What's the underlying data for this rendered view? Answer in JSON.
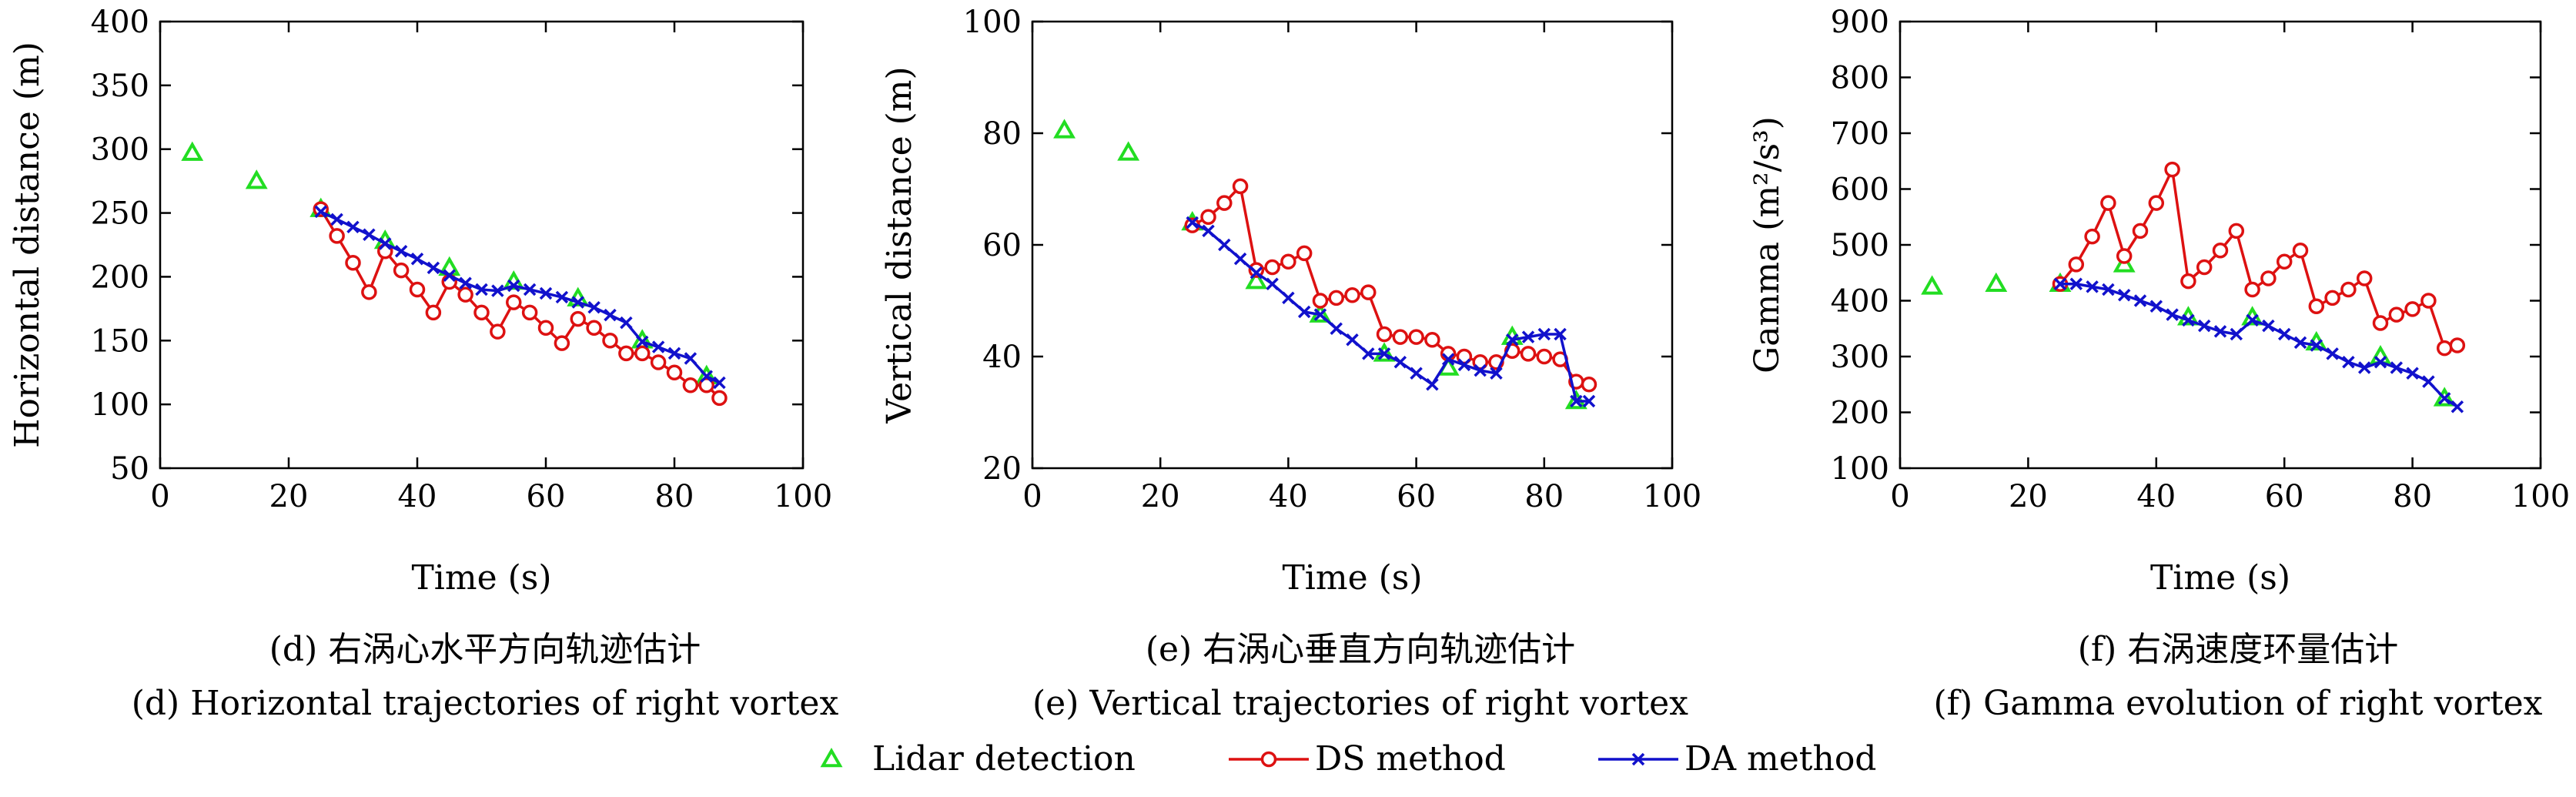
{
  "chart_data": [
    {
      "type": "line",
      "title": "",
      "xlabel": "Time (s)",
      "ylabel": "Horizontal distance (m)",
      "xlim": [
        0,
        100
      ],
      "ylim": [
        50,
        400
      ],
      "xticks": [
        0,
        20,
        40,
        60,
        80,
        100
      ],
      "yticks": [
        50,
        100,
        150,
        200,
        250,
        300,
        350,
        400
      ],
      "caption_cn": "(d) 右涡心水平方向轨迹估计",
      "caption_en": "(d) Horizontal trajectories of right vortex",
      "series": [
        {
          "name": "Lidar detection",
          "marker": "triangle",
          "color": "#22dd22",
          "x": [
            5,
            15,
            25,
            35,
            45,
            55,
            65,
            75,
            85
          ],
          "y": [
            297,
            275,
            253,
            228,
            207,
            196,
            183,
            150,
            122
          ]
        },
        {
          "name": "DS method",
          "marker": "circle",
          "color": "#dd1111",
          "x": [
            25,
            27.5,
            30,
            32.5,
            35,
            37.5,
            40,
            42.5,
            45,
            47.5,
            50,
            52.5,
            55,
            57.5,
            60,
            62.5,
            65,
            67.5,
            70,
            72.5,
            75,
            77.5,
            80,
            82.5,
            85,
            87
          ],
          "y": [
            253,
            232,
            211,
            188,
            220,
            205,
            190,
            172,
            196,
            186,
            172,
            157,
            180,
            172,
            160,
            148,
            167,
            160,
            150,
            140,
            140,
            133,
            125,
            115,
            115,
            105
          ]
        },
        {
          "name": "DA method",
          "marker": "x",
          "color": "#1111cc",
          "x": [
            25,
            27.5,
            30,
            32.5,
            35,
            37.5,
            40,
            42.5,
            45,
            47.5,
            50,
            52.5,
            55,
            57.5,
            60,
            62.5,
            65,
            67.5,
            70,
            72.5,
            75,
            77.5,
            80,
            82.5,
            85,
            87
          ],
          "y": [
            251,
            245,
            239,
            233,
            226,
            220,
            214,
            207,
            201,
            195,
            190,
            189,
            193,
            190,
            187,
            184,
            180,
            176,
            170,
            164,
            149,
            145,
            140,
            136,
            122,
            117
          ]
        }
      ]
    },
    {
      "type": "line",
      "title": "",
      "xlabel": "Time (s)",
      "ylabel": "Vertical distance (m)",
      "xlim": [
        0,
        100
      ],
      "ylim": [
        20,
        100
      ],
      "xticks": [
        0,
        20,
        40,
        60,
        80,
        100
      ],
      "yticks": [
        20,
        40,
        60,
        80,
        100
      ],
      "caption_cn": "(e) 右涡心垂直方向轨迹估计",
      "caption_en": "(e) Vertical trajectories of right vortex",
      "series": [
        {
          "name": "Lidar detection",
          "marker": "triangle",
          "color": "#22dd22",
          "x": [
            5,
            15,
            25,
            35,
            45,
            55,
            65,
            75,
            85
          ],
          "y": [
            80.5,
            76.5,
            64,
            53.5,
            47.5,
            40.5,
            38,
            43.5,
            32
          ]
        },
        {
          "name": "DS method",
          "marker": "circle",
          "color": "#dd1111",
          "x": [
            25,
            27.5,
            30,
            32.5,
            35,
            37.5,
            40,
            42.5,
            45,
            47.5,
            50,
            52.5,
            55,
            57.5,
            60,
            62.5,
            65,
            67.5,
            70,
            72.5,
            75,
            77.5,
            80,
            82.5,
            85,
            87
          ],
          "y": [
            63.5,
            65,
            67.5,
            70.5,
            55.5,
            56,
            57,
            58.5,
            50,
            50.5,
            51,
            51.5,
            44,
            43.5,
            43.5,
            43,
            40.5,
            40,
            39,
            39,
            41,
            40.5,
            40,
            39.5,
            35.5,
            35
          ]
        },
        {
          "name": "DA method",
          "marker": "x",
          "color": "#1111cc",
          "x": [
            25,
            27.5,
            30,
            32.5,
            35,
            37.5,
            40,
            42.5,
            45,
            47.5,
            50,
            52.5,
            55,
            57.5,
            60,
            62.5,
            65,
            67.5,
            70,
            72.5,
            75,
            77.5,
            80,
            82.5,
            85,
            87
          ],
          "y": [
            64,
            62.5,
            60,
            57.5,
            55,
            53,
            50.5,
            48,
            47.5,
            45,
            43,
            40.5,
            40.5,
            39,
            37,
            35,
            39.5,
            38.5,
            37.5,
            37,
            43,
            43.5,
            44,
            44,
            32,
            32
          ]
        }
      ]
    },
    {
      "type": "line",
      "title": "",
      "xlabel": "Time (s)",
      "ylabel": "Gamma (m²/s³)",
      "xlim": [
        0,
        100
      ],
      "ylim": [
        100,
        900
      ],
      "xticks": [
        0,
        20,
        40,
        60,
        80,
        100
      ],
      "yticks": [
        100,
        200,
        300,
        400,
        500,
        600,
        700,
        800,
        900
      ],
      "caption_cn": "(f) 右涡速度环量估计",
      "caption_en": "(f) Gamma evolution of right vortex",
      "series": [
        {
          "name": "Lidar detection",
          "marker": "triangle",
          "color": "#22dd22",
          "x": [
            5,
            15,
            25,
            35,
            45,
            55,
            65,
            75,
            85
          ],
          "y": [
            425,
            430,
            430,
            465,
            370,
            370,
            325,
            300,
            225
          ]
        },
        {
          "name": "DS method",
          "marker": "circle",
          "color": "#dd1111",
          "x": [
            25,
            27.5,
            30,
            32.5,
            35,
            37.5,
            40,
            42.5,
            45,
            47.5,
            50,
            52.5,
            55,
            57.5,
            60,
            62.5,
            65,
            67.5,
            70,
            72.5,
            75,
            77.5,
            80,
            82.5,
            85,
            87
          ],
          "y": [
            430,
            465,
            515,
            575,
            480,
            525,
            575,
            635,
            435,
            460,
            490,
            525,
            420,
            440,
            470,
            490,
            390,
            405,
            420,
            440,
            360,
            375,
            385,
            400,
            315,
            320
          ]
        },
        {
          "name": "DA method",
          "marker": "x",
          "color": "#1111cc",
          "x": [
            25,
            27.5,
            30,
            32.5,
            35,
            37.5,
            40,
            42.5,
            45,
            47.5,
            50,
            52.5,
            55,
            57.5,
            60,
            62.5,
            65,
            67.5,
            70,
            72.5,
            75,
            77.5,
            80,
            82.5,
            85,
            87
          ],
          "y": [
            430,
            430,
            425,
            420,
            410,
            400,
            390,
            375,
            365,
            355,
            345,
            340,
            365,
            355,
            340,
            325,
            320,
            305,
            290,
            280,
            290,
            280,
            270,
            255,
            225,
            210
          ]
        }
      ]
    }
  ],
  "legend": {
    "items": [
      {
        "label": "Lidar detection",
        "marker": "triangle",
        "color": "#22dd22"
      },
      {
        "label": "DS method",
        "marker": "circle",
        "color": "#dd1111"
      },
      {
        "label": "DA method",
        "marker": "x",
        "color": "#1111cc"
      }
    ]
  }
}
